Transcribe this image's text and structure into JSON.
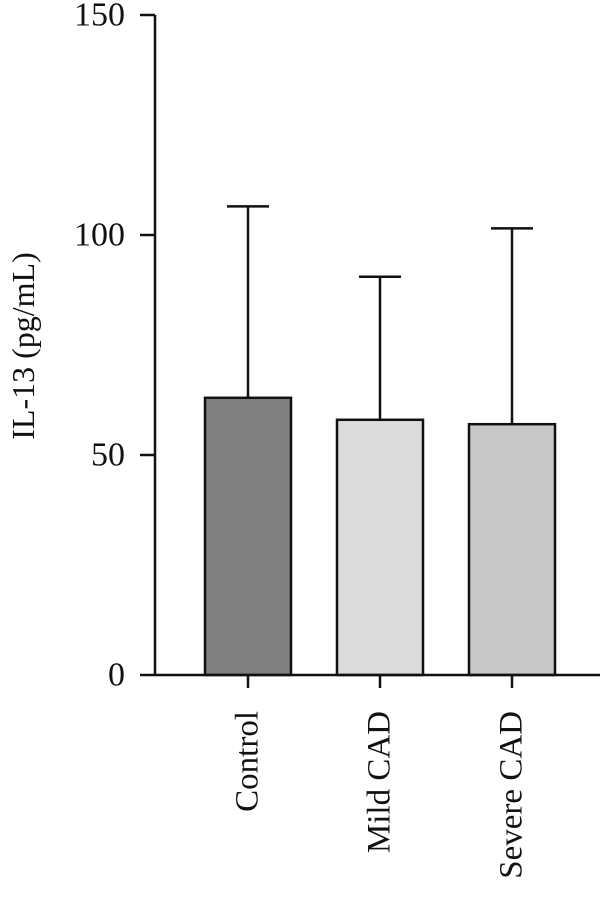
{
  "chart_data": {
    "type": "bar",
    "title": "",
    "xlabel": "",
    "ylabel": "IL-13 (pg/mL)",
    "ylim": [
      0,
      150
    ],
    "yticks": [
      0,
      50,
      100,
      150
    ],
    "grid": false,
    "categories": [
      "Control",
      "Mild CAD",
      "Severe CAD"
    ],
    "values": [
      63,
      58,
      57
    ],
    "error_upper": [
      106.5,
      90.5,
      101.5
    ],
    "colors": [
      "#808080",
      "#dcdcdc",
      "#c8c8c8"
    ]
  }
}
